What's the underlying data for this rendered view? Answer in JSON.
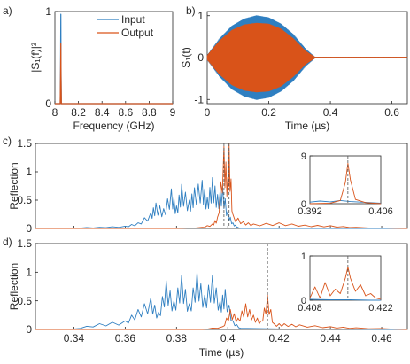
{
  "colors": {
    "input": "#2f7fc1",
    "output": "#d95319",
    "axis": "#262626",
    "dashed": "#555555"
  },
  "chart_data": [
    {
      "id": "a",
      "panel_label": "a)",
      "type": "line",
      "xlabel": "Frequency (GHz)",
      "ylabel": "|S₁(f)|²",
      "xlim": [
        8,
        9
      ],
      "ylim": [
        0,
        1
      ],
      "xticks": [
        "8",
        "8.2",
        "8.4",
        "8.6",
        "8.8",
        "9"
      ],
      "yticks": [
        "0",
        "1"
      ],
      "grid": false,
      "legend_position": "top-right",
      "series": [
        {
          "name": "Input",
          "x": [
            8.0,
            8.045,
            8.048,
            8.05,
            8.052,
            8.055,
            9.0
          ],
          "values": [
            0,
            0,
            0.4,
            0.97,
            0.4,
            0,
            0
          ]
        },
        {
          "name": "Output",
          "x": [
            8.0,
            8.045,
            8.048,
            8.05,
            8.052,
            8.055,
            9.0
          ],
          "values": [
            0,
            0,
            0.3,
            0.65,
            0.3,
            0,
            0
          ]
        }
      ]
    },
    {
      "id": "b",
      "panel_label": "b)",
      "type": "line",
      "xlabel": "Time (µs)",
      "ylabel": "S₁(t)",
      "xlim": [
        0,
        0.65
      ],
      "ylim": [
        -1.1,
        1.1
      ],
      "xticks": [
        "0",
        "0.2",
        "0.4",
        "0.6"
      ],
      "yticks": [
        "-1",
        "0",
        "1"
      ],
      "grid": false,
      "series": [
        {
          "name": "Input",
          "envelope_t": [
            0,
            0.04,
            0.08,
            0.12,
            0.16,
            0.2,
            0.24,
            0.28,
            0.32,
            0.35,
            0.65
          ],
          "envelope": [
            0.05,
            0.45,
            0.75,
            0.92,
            1.0,
            0.95,
            0.8,
            0.55,
            0.2,
            0.01,
            0.01
          ]
        },
        {
          "name": "Output",
          "envelope_t": [
            0,
            0.04,
            0.08,
            0.12,
            0.16,
            0.2,
            0.24,
            0.28,
            0.32,
            0.35,
            0.65
          ],
          "envelope": [
            0.05,
            0.4,
            0.65,
            0.78,
            0.82,
            0.8,
            0.68,
            0.45,
            0.15,
            0.01,
            0.01
          ]
        }
      ]
    },
    {
      "id": "c",
      "panel_label": "c)",
      "type": "line",
      "xlabel": "",
      "ylabel": "Reflection",
      "xlim": [
        0.325,
        0.47
      ],
      "ylim": [
        0,
        1.5
      ],
      "yticks": [
        "0",
        "0.5",
        "1",
        "1.5"
      ],
      "grid": false,
      "markers": [
        0.3985,
        0.4005
      ],
      "series": [
        {
          "name": "Input",
          "x": [
            0.325,
            0.34,
            0.35,
            0.36,
            0.365,
            0.37,
            0.372,
            0.375,
            0.378,
            0.38,
            0.382,
            0.385,
            0.387,
            0.39,
            0.392,
            0.394,
            0.396,
            0.398,
            0.4,
            0.402,
            0.404,
            0.405,
            0.47
          ],
          "values": [
            0.0,
            0.01,
            0.02,
            0.04,
            0.1,
            0.28,
            0.45,
            0.35,
            0.7,
            0.4,
            0.78,
            0.5,
            0.72,
            0.85,
            0.55,
            0.9,
            0.6,
            0.75,
            0.3,
            0.1,
            0.02,
            0.0,
            0.0
          ]
        },
        {
          "name": "Output",
          "x": [
            0.325,
            0.38,
            0.39,
            0.394,
            0.396,
            0.3985,
            0.4,
            0.4005,
            0.402,
            0.406,
            0.41,
            0.42,
            0.43,
            0.44,
            0.45,
            0.47
          ],
          "values": [
            0.0,
            0.0,
            0.02,
            0.08,
            0.2,
            1.45,
            0.9,
            1.5,
            0.25,
            0.12,
            0.08,
            0.1,
            0.06,
            0.05,
            0.02,
            0.0
          ]
        }
      ],
      "inset": {
        "xlim": [
          0.392,
          0.406
        ],
        "ylim": [
          0,
          9
        ],
        "xticks": [
          "0.392",
          "0.406"
        ],
        "yticks": [
          "0",
          "9"
        ],
        "marker": 0.3995,
        "series": [
          {
            "name": "Input",
            "x": [
              0.392,
              0.394,
              0.396,
              0.398,
              0.4,
              0.402,
              0.404,
              0.406
            ],
            "values": [
              0.3,
              0.5,
              0.35,
              0.6,
              0.4,
              0.3,
              0.2,
              0.1
            ]
          },
          {
            "name": "Output",
            "x": [
              0.392,
              0.396,
              0.398,
              0.399,
              0.3995,
              0.4,
              0.401,
              0.403,
              0.406
            ],
            "values": [
              0.0,
              0.1,
              0.6,
              4.0,
              7.6,
              4.5,
              0.8,
              0.2,
              0.0
            ]
          }
        ]
      }
    },
    {
      "id": "d",
      "panel_label": "d)",
      "type": "line",
      "xlabel": "Time (µs)",
      "ylabel": "Reflection",
      "xlim": [
        0.325,
        0.47
      ],
      "ylim": [
        0,
        1.5
      ],
      "xticks": [
        "0.34",
        "0.36",
        "0.38",
        "0.4",
        "0.42",
        "0.44",
        "0.46"
      ],
      "yticks": [
        "0",
        "0.5",
        "1",
        "1.5"
      ],
      "grid": false,
      "markers": [
        0.4155
      ],
      "series": [
        {
          "name": "Input",
          "x": [
            0.325,
            0.34,
            0.35,
            0.36,
            0.365,
            0.37,
            0.373,
            0.376,
            0.379,
            0.382,
            0.385,
            0.388,
            0.391,
            0.394,
            0.397,
            0.399,
            0.402,
            0.405,
            0.47
          ],
          "values": [
            0.0,
            0.01,
            0.1,
            0.15,
            0.35,
            0.55,
            0.3,
            0.85,
            0.5,
            0.95,
            0.45,
            1.0,
            0.6,
            0.95,
            0.5,
            0.7,
            0.15,
            0.02,
            0.0
          ]
        },
        {
          "name": "Output",
          "x": [
            0.325,
            0.39,
            0.398,
            0.401,
            0.404,
            0.407,
            0.41,
            0.413,
            0.4155,
            0.418,
            0.422,
            0.428,
            0.44,
            0.45,
            0.47
          ],
          "values": [
            0.0,
            0.0,
            0.05,
            0.35,
            0.2,
            0.45,
            0.25,
            0.15,
            0.6,
            0.1,
            0.1,
            0.08,
            0.05,
            0.03,
            0.0
          ]
        }
      ],
      "inset": {
        "xlim": [
          0.408,
          0.422
        ],
        "ylim": [
          0,
          1
        ],
        "xticks": [
          "0.408",
          "0.422"
        ],
        "yticks": [
          "0",
          "1"
        ],
        "marker": 0.4155,
        "series": [
          {
            "name": "Input",
            "x": [
              0.408,
              0.412,
              0.416,
              0.42,
              0.422
            ],
            "values": [
              0.02,
              0.01,
              0.01,
              0.0,
              0.0
            ]
          },
          {
            "name": "Output",
            "x": [
              0.408,
              0.409,
              0.41,
              0.411,
              0.412,
              0.413,
              0.414,
              0.415,
              0.4155,
              0.416,
              0.417,
              0.418,
              0.419,
              0.42,
              0.421,
              0.422
            ],
            "values": [
              0.05,
              0.3,
              0.05,
              0.4,
              0.1,
              0.25,
              0.15,
              0.5,
              0.75,
              0.5,
              0.2,
              0.35,
              0.1,
              0.15,
              0.05,
              0.02
            ]
          }
        ]
      }
    }
  ]
}
